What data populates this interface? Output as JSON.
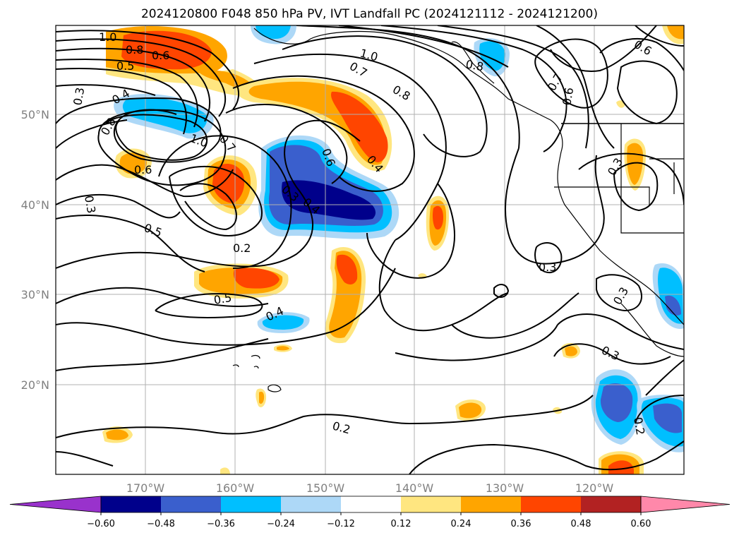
{
  "title": "2024120800 F048 850 hPa PV, IVT Landfall PC (2024121112 - 2024121200)",
  "map": {
    "lon_ticks": [
      "170°W",
      "160°W",
      "150°W",
      "140°W",
      "130°W",
      "120°W"
    ],
    "lat_ticks": [
      "50°N",
      "40°N",
      "30°N",
      "20°N"
    ],
    "contour_labels": [
      "1.0",
      "0.8",
      "0.6",
      "0.5",
      "0.3",
      "0.4",
      "0.8",
      "1.0",
      "0.7",
      "0.6",
      "0.3",
      "0.5",
      "0.2",
      "0.5",
      "0.4",
      "0.6",
      "0.4",
      "0.3",
      "0.4",
      "1.0",
      "0.7",
      "0.8",
      "0.8",
      "0.7",
      "0.6",
      "0.6",
      "0.3",
      "0.3",
      "0.3",
      "0.3",
      "0.2",
      "0.2"
    ]
  },
  "colorbar": {
    "ticks": [
      "−0.60",
      "−0.48",
      "−0.36",
      "−0.24",
      "−0.12",
      "0.12",
      "0.24",
      "0.36",
      "0.48",
      "0.60"
    ],
    "colors": [
      "#9932cc",
      "#00008b",
      "#3a5fcd",
      "#00bfff",
      "#add8f7",
      "#ffffff",
      "#ffe680",
      "#ffa500",
      "#ff4500",
      "#b22222",
      "#ff88aa"
    ]
  },
  "shading_colors": {
    "neg_light": "#add8f7",
    "neg_mid": "#00bfff",
    "neg_strong": "#3a5fcd",
    "neg_max": "#00008b",
    "pos_light": "#ffe680",
    "pos_mid": "#ffa500",
    "pos_strong": "#ff4500"
  }
}
